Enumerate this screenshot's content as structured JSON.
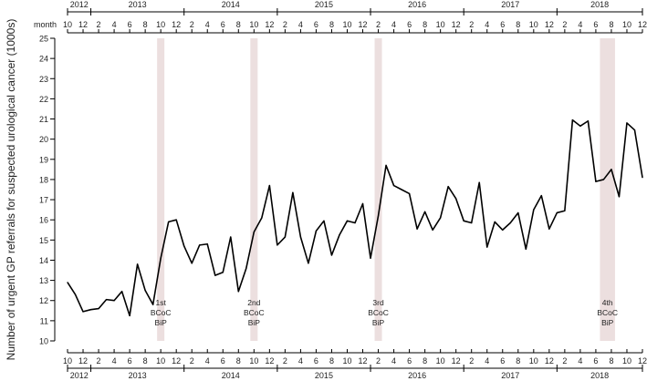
{
  "chart_data": {
    "type": "line",
    "xlabel_top": "month",
    "ylabel": "Number of urgent GP referrals for suspected urological cancer (1000s)",
    "ylim": [
      10,
      25
    ],
    "yticks": [
      10,
      11,
      12,
      13,
      14,
      15,
      16,
      17,
      18,
      19,
      20,
      21,
      22,
      23,
      24,
      25
    ],
    "x_start": "2012-10",
    "x_end": "2018-12",
    "month_tick_labels": [
      "10",
      "12",
      "2",
      "4",
      "6",
      "8",
      "10",
      "12",
      "2",
      "4",
      "6",
      "8",
      "10",
      "12",
      "2",
      "4",
      "6",
      "8",
      "10",
      "12",
      "2",
      "4",
      "6",
      "8",
      "10",
      "12",
      "2",
      "4",
      "6",
      "8",
      "10",
      "12",
      "2",
      "4",
      "6",
      "8",
      "10",
      "12"
    ],
    "year_labels": [
      "2012",
      "2013",
      "2014",
      "2015",
      "2016",
      "2017",
      "2018"
    ],
    "grid": false,
    "series": [
      {
        "values": [
          12.9,
          12.3,
          11.45,
          11.55,
          11.6,
          12.05,
          12.0,
          12.45,
          11.25,
          13.8,
          12.5,
          11.8,
          14.1,
          15.9,
          16.0,
          14.7,
          13.85,
          14.75,
          14.8,
          13.25,
          13.4,
          15.15,
          12.45,
          13.6,
          15.4,
          16.1,
          17.7,
          14.75,
          15.15,
          17.35,
          15.15,
          13.85,
          15.45,
          15.95,
          14.25,
          15.25,
          15.95,
          15.85,
          16.8,
          14.1,
          16.2,
          18.7,
          17.7,
          17.5,
          17.3,
          15.55,
          16.4,
          15.5,
          16.1,
          17.65,
          17.05,
          15.95,
          15.85,
          17.85,
          14.65,
          15.9,
          15.5,
          15.85,
          16.35,
          14.55,
          16.5,
          17.2,
          15.55,
          16.35,
          16.45,
          20.95,
          20.65,
          20.9,
          17.9,
          18.0,
          18.5,
          17.15,
          20.8,
          20.45,
          18.1
        ]
      }
    ],
    "annotations": [
      {
        "month": "2013-10",
        "lines": [
          "1st",
          "BCoC",
          "BiP"
        ],
        "color": "#ecdfdf"
      },
      {
        "month": "2014-10",
        "lines": [
          "2nd",
          "BCoC",
          "BiP"
        ],
        "color": "#ecdfdf"
      },
      {
        "month": "2016-02",
        "lines": [
          "3rd",
          "BCoC",
          "BiP"
        ],
        "color": "#ecdfdf"
      },
      {
        "month": "2018-07",
        "lines": [
          "4th",
          "BCoC",
          "BiP"
        ],
        "color": "#ecdfdf",
        "span_months": 2
      }
    ],
    "line_color": "#000000"
  }
}
